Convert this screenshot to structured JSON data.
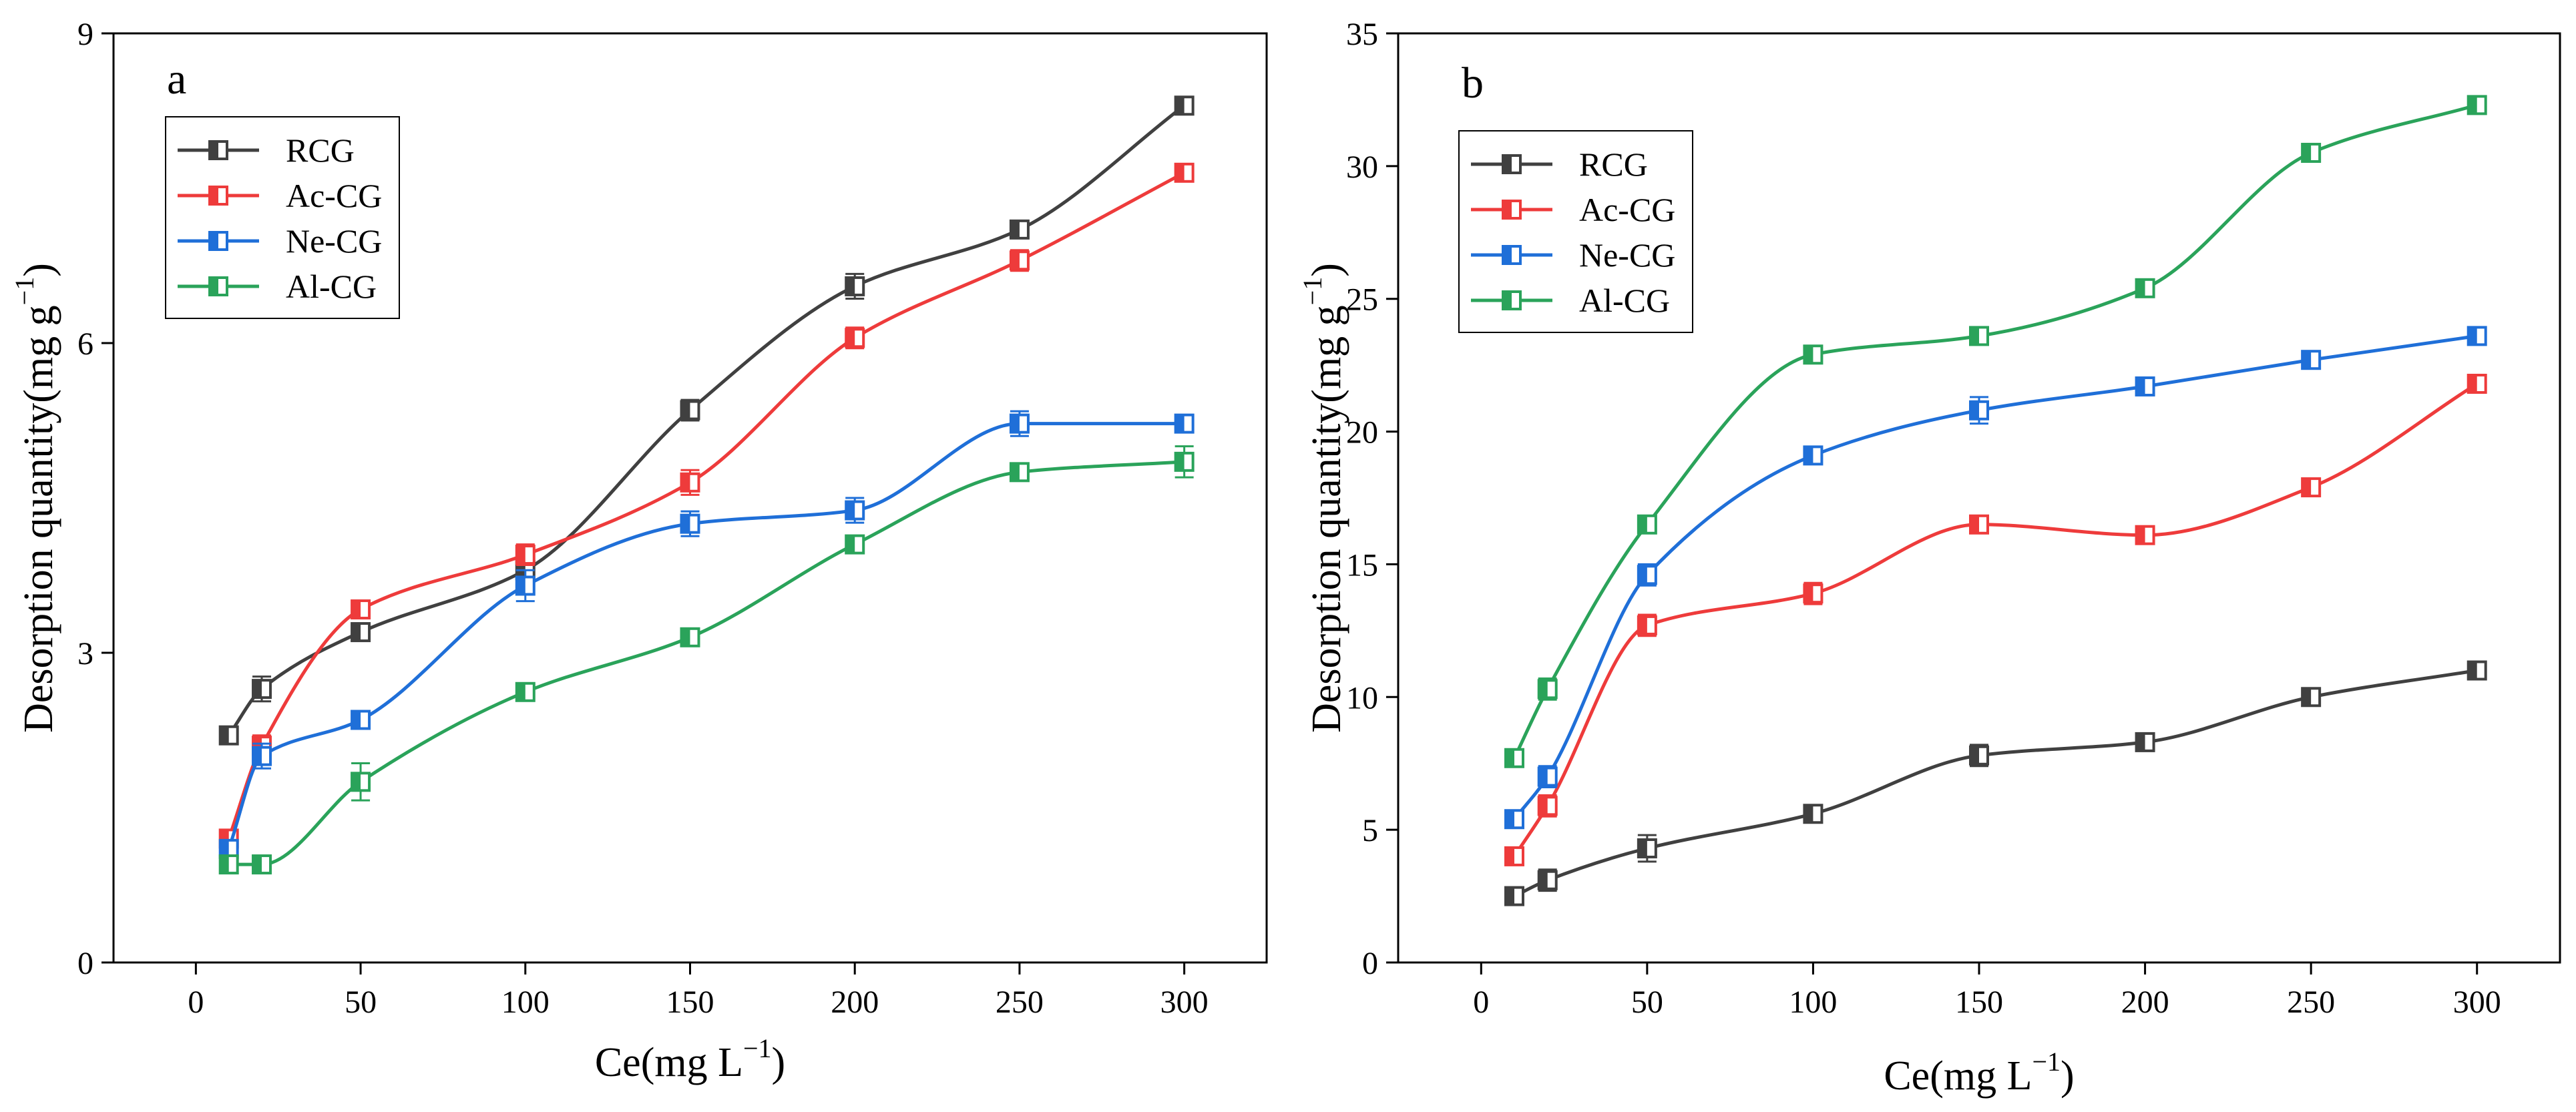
{
  "chart_data": [
    {
      "panel": "a",
      "type": "line",
      "title": "",
      "xlabel": "Ce(mg L",
      "xlabel_sup": "−1",
      "xlabel_end": ")",
      "ylabel": "Desorption quantity(mg g",
      "ylabel_sup": "−1",
      "ylabel_end": ")",
      "xlim": [
        -25,
        325
      ],
      "ylim": [
        0,
        9
      ],
      "xticks": [
        0,
        50,
        100,
        150,
        200,
        250,
        300
      ],
      "yticks": [
        0,
        3,
        6,
        9
      ],
      "x": [
        10,
        20,
        50,
        100,
        150,
        200,
        250,
        300
      ],
      "legend_position": "upper-left",
      "series": [
        {
          "name": "RCG",
          "color": "#404040",
          "values": [
            2.2,
            2.65,
            3.2,
            3.8,
            5.35,
            6.55,
            7.1,
            8.3
          ],
          "errors": [
            0.08,
            0.12,
            0.08,
            0.1,
            0.1,
            0.12,
            0.08,
            0.08
          ]
        },
        {
          "name": "Ac-CG",
          "color": "#ee3b3b",
          "values": [
            1.2,
            2.1,
            3.42,
            3.95,
            4.65,
            6.05,
            6.8,
            7.65
          ],
          "errors": [
            0.06,
            0.1,
            0.08,
            0.1,
            0.12,
            0.1,
            0.1,
            0.08
          ]
        },
        {
          "name": "Ne-CG",
          "color": "#1f6fd8",
          "values": [
            1.1,
            2.0,
            2.35,
            3.65,
            4.25,
            4.38,
            5.22,
            5.22
          ],
          "errors": [
            0.08,
            0.12,
            0.08,
            0.15,
            0.12,
            0.12,
            0.12,
            0.08
          ]
        },
        {
          "name": "Al-CG",
          "color": "#2aa35a",
          "values": [
            0.95,
            0.95,
            1.75,
            2.62,
            3.15,
            4.05,
            4.75,
            4.85
          ],
          "errors": [
            0.06,
            0.06,
            0.18,
            0.08,
            0.08,
            0.08,
            0.08,
            0.15
          ]
        }
      ]
    },
    {
      "panel": "b",
      "type": "line",
      "title": "",
      "xlabel": "Ce(mg L",
      "xlabel_sup": "−1",
      "xlabel_end": ")",
      "ylabel": "Desorption quantity(mg g",
      "ylabel_sup": "−1",
      "ylabel_end": ")",
      "xlim": [
        -25,
        325
      ],
      "ylim": [
        0,
        35
      ],
      "xticks": [
        0,
        50,
        100,
        150,
        200,
        250,
        300
      ],
      "yticks": [
        0,
        5,
        10,
        15,
        20,
        25,
        30,
        35
      ],
      "x": [
        10,
        20,
        50,
        100,
        150,
        200,
        250,
        300
      ],
      "legend_position": "upper-left",
      "series": [
        {
          "name": "RCG",
          "color": "#404040",
          "values": [
            2.5,
            3.1,
            4.3,
            5.6,
            7.8,
            8.3,
            10.0,
            11.0
          ],
          "errors": [
            0.3,
            0.4,
            0.5,
            0.3,
            0.4,
            0.3,
            0.3,
            0.3
          ]
        },
        {
          "name": "Ac-CG",
          "color": "#ee3b3b",
          "values": [
            4.0,
            5.9,
            12.7,
            13.9,
            16.5,
            16.1,
            17.9,
            21.8
          ],
          "errors": [
            0.3,
            0.4,
            0.4,
            0.4,
            0.3,
            0.3,
            0.3,
            0.3
          ]
        },
        {
          "name": "Ne-CG",
          "color": "#1f6fd8",
          "values": [
            5.4,
            7.0,
            14.6,
            19.1,
            20.8,
            21.7,
            22.7,
            23.6
          ],
          "errors": [
            0.3,
            0.4,
            0.4,
            0.3,
            0.5,
            0.3,
            0.3,
            0.3
          ]
        },
        {
          "name": "Al-CG",
          "color": "#2aa35a",
          "values": [
            7.7,
            10.3,
            16.5,
            22.9,
            23.6,
            25.4,
            30.5,
            32.3
          ],
          "errors": [
            0.3,
            0.4,
            0.3,
            0.3,
            0.3,
            0.3,
            0.3,
            0.3
          ]
        }
      ]
    }
  ]
}
